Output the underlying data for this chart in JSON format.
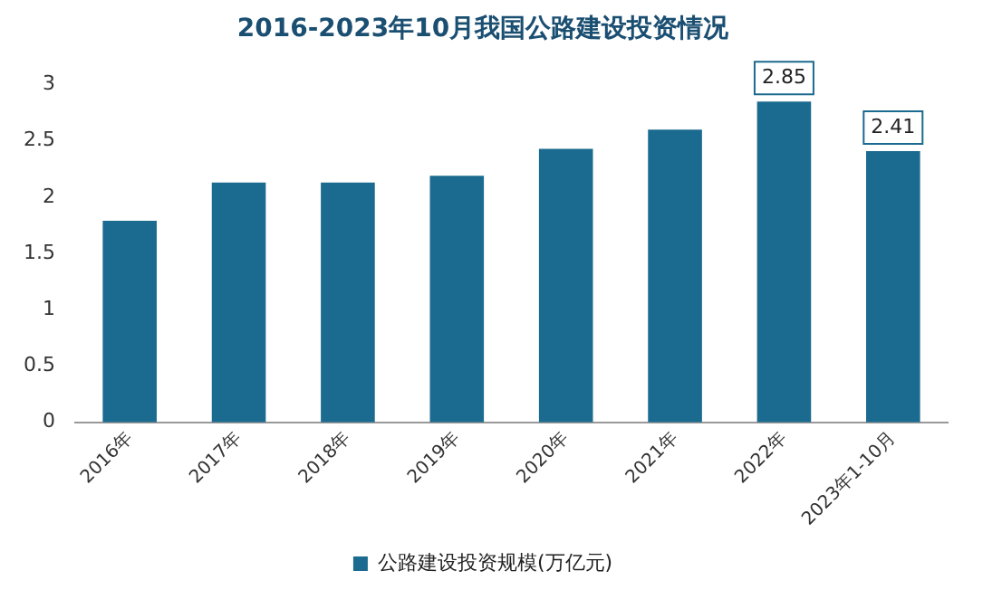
{
  "chart_data": {
    "type": "bar",
    "title": "2016-2023年10月我国公路建设投资情况",
    "categories": [
      "2016年",
      "2017年",
      "2018年",
      "2019年",
      "2020年",
      "2021年",
      "2022年",
      "2023年1-10月"
    ],
    "series": [
      {
        "name": "公路建设投资规模(万亿元)",
        "color": "#1b6a8f",
        "values": [
          1.79,
          2.13,
          2.13,
          2.19,
          2.43,
          2.6,
          2.85,
          2.41
        ],
        "value_labels": [
          null,
          null,
          null,
          null,
          null,
          null,
          "2.85",
          "2.41"
        ]
      }
    ],
    "ylim": [
      0,
      3
    ],
    "yticks": [
      0,
      0.5,
      1,
      1.5,
      2,
      2.5,
      3
    ],
    "grid": false,
    "legend": "bottom"
  }
}
